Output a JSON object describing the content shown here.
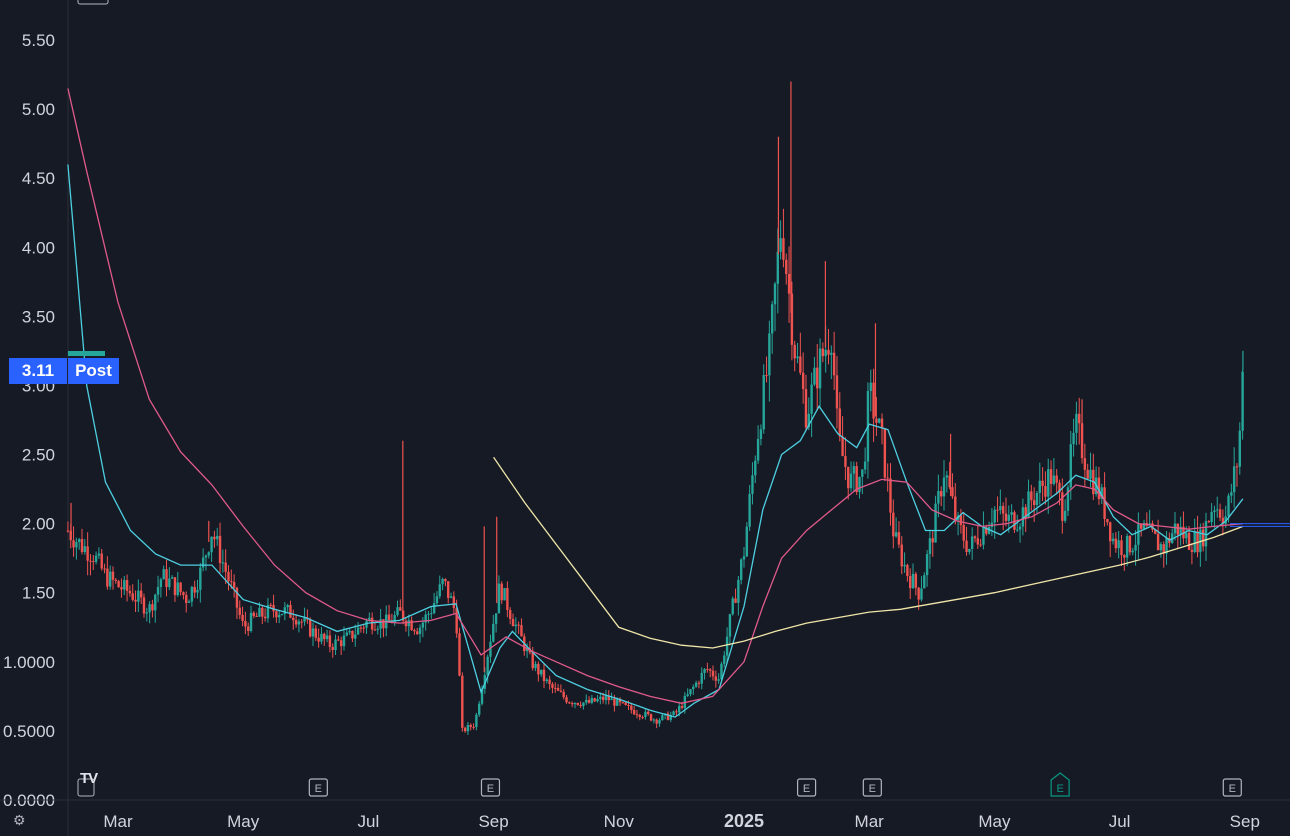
{
  "chart_data": {
    "type": "candlestick",
    "y_ticks": [
      "5.50",
      "5.00",
      "4.50",
      "4.00",
      "3.50",
      "3.00",
      "2.50",
      "2.00",
      "1.50",
      "1.0000",
      "0.5000",
      "0.0000"
    ],
    "y_tick_values": [
      5.5,
      5.0,
      4.5,
      4.0,
      3.5,
      3.0,
      2.5,
      2.0,
      1.5,
      1.0,
      0.5,
      0.0
    ],
    "x_ticks": [
      {
        "label": "Mar",
        "month": 2,
        "bold": false
      },
      {
        "label": "May",
        "month": 4,
        "bold": false
      },
      {
        "label": "Jul",
        "month": 6,
        "bold": false
      },
      {
        "label": "Sep",
        "month": 8,
        "bold": false
      },
      {
        "label": "Nov",
        "month": 10,
        "bold": false
      },
      {
        "label": "2025",
        "month": 12,
        "bold": true
      },
      {
        "label": "Mar",
        "month": 14,
        "bold": false
      },
      {
        "label": "May",
        "month": 16,
        "bold": false
      },
      {
        "label": "Jul",
        "month": 18,
        "bold": false
      },
      {
        "label": "Sep",
        "month": 20,
        "bold": false
      }
    ],
    "ylim": [
      0.0,
      5.8
    ],
    "xlim_months": [
      1.2,
      21.2
    ],
    "current_price": "3.11",
    "session_label": "Post",
    "earnings_markers": [
      {
        "label": "E",
        "month": 5.2,
        "color": "#b2b5be"
      },
      {
        "label": "E",
        "month": 7.95,
        "color": "#b2b5be"
      },
      {
        "label": "E",
        "month": 13.0,
        "color": "#b2b5be"
      },
      {
        "label": "E",
        "month": 14.05,
        "color": "#b2b5be"
      },
      {
        "label": "E",
        "month": 17.05,
        "color": "#089981"
      },
      {
        "label": "E",
        "month": 19.8,
        "color": "#b2b5be"
      }
    ],
    "price_path": [
      [
        1.2,
        1.95
      ],
      [
        1.4,
        1.85
      ],
      [
        1.6,
        1.78
      ],
      [
        1.8,
        1.62
      ],
      [
        2.0,
        1.55
      ],
      [
        2.2,
        1.5
      ],
      [
        2.5,
        1.38
      ],
      [
        2.7,
        1.62
      ],
      [
        2.9,
        1.55
      ],
      [
        3.1,
        1.46
      ],
      [
        3.3,
        1.62
      ],
      [
        3.5,
        1.95
      ],
      [
        3.6,
        1.82
      ],
      [
        3.8,
        1.55
      ],
      [
        4.0,
        1.25
      ],
      [
        4.2,
        1.32
      ],
      [
        4.5,
        1.38
      ],
      [
        4.8,
        1.35
      ],
      [
        5.1,
        1.22
      ],
      [
        5.4,
        1.12
      ],
      [
        5.7,
        1.18
      ],
      [
        6.0,
        1.3
      ],
      [
        6.3,
        1.28
      ],
      [
        6.5,
        1.35
      ],
      [
        6.8,
        1.24
      ],
      [
        7.0,
        1.38
      ],
      [
        7.2,
        1.58
      ],
      [
        7.4,
        1.35
      ],
      [
        7.5,
        0.5
      ],
      [
        7.7,
        0.55
      ],
      [
        7.9,
        1.05
      ],
      [
        8.1,
        1.55
      ],
      [
        8.3,
        1.32
      ],
      [
        8.6,
        1.0
      ],
      [
        8.9,
        0.82
      ],
      [
        9.2,
        0.72
      ],
      [
        9.5,
        0.7
      ],
      [
        9.8,
        0.74
      ],
      [
        10.1,
        0.67
      ],
      [
        10.4,
        0.62
      ],
      [
        10.6,
        0.58
      ],
      [
        10.9,
        0.62
      ],
      [
        11.2,
        0.82
      ],
      [
        11.4,
        0.95
      ],
      [
        11.6,
        0.88
      ],
      [
        11.8,
        1.35
      ],
      [
        12.0,
        1.8
      ],
      [
        12.2,
        2.6
      ],
      [
        12.4,
        3.2
      ],
      [
        12.6,
        4.2
      ],
      [
        12.8,
        3.3
      ],
      [
        13.0,
        2.8
      ],
      [
        13.2,
        3.15
      ],
      [
        13.4,
        3.4
      ],
      [
        13.5,
        2.6
      ],
      [
        13.7,
        2.3
      ],
      [
        13.9,
        2.35
      ],
      [
        14.0,
        2.95
      ],
      [
        14.2,
        2.6
      ],
      [
        14.4,
        1.9
      ],
      [
        14.6,
        1.65
      ],
      [
        14.8,
        1.5
      ],
      [
        15.0,
        1.9
      ],
      [
        15.2,
        2.4
      ],
      [
        15.4,
        2.0
      ],
      [
        15.6,
        1.82
      ],
      [
        15.8,
        1.95
      ],
      [
        16.0,
        2.1
      ],
      [
        16.2,
        2.02
      ],
      [
        16.4,
        2.05
      ],
      [
        16.6,
        2.18
      ],
      [
        16.9,
        2.35
      ],
      [
        17.1,
        2.1
      ],
      [
        17.3,
        2.7
      ],
      [
        17.5,
        2.4
      ],
      [
        17.7,
        2.2
      ],
      [
        17.9,
        1.88
      ],
      [
        18.1,
        1.82
      ],
      [
        18.4,
        1.95
      ],
      [
        18.7,
        1.82
      ],
      [
        18.9,
        1.98
      ],
      [
        19.1,
        1.88
      ],
      [
        19.3,
        1.88
      ],
      [
        19.5,
        2.15
      ],
      [
        19.7,
        2.05
      ],
      [
        19.9,
        2.5
      ],
      [
        19.97,
        3.11
      ]
    ],
    "spikes": [
      {
        "month": 1.25,
        "high": 2.15
      },
      {
        "month": 3.45,
        "high": 2.02
      },
      {
        "month": 6.55,
        "high": 2.6
      },
      {
        "month": 7.85,
        "high": 1.98
      },
      {
        "month": 8.05,
        "high": 2.05
      },
      {
        "month": 12.55,
        "high": 4.8
      },
      {
        "month": 12.75,
        "high": 5.2
      },
      {
        "month": 13.3,
        "high": 3.9
      },
      {
        "month": 14.1,
        "high": 3.45
      },
      {
        "month": 15.3,
        "high": 2.65
      },
      {
        "month": 17.4,
        "high": 2.9
      },
      {
        "month": 19.97,
        "high": 3.25
      }
    ],
    "ma_series": [
      {
        "color": "#4dd0e1",
        "points": [
          [
            1.2,
            4.6
          ],
          [
            1.5,
            3.0
          ],
          [
            1.8,
            2.3
          ],
          [
            2.2,
            1.95
          ],
          [
            2.6,
            1.78
          ],
          [
            3.0,
            1.7
          ],
          [
            3.5,
            1.7
          ],
          [
            4.0,
            1.45
          ],
          [
            4.5,
            1.38
          ],
          [
            5.0,
            1.32
          ],
          [
            5.5,
            1.22
          ],
          [
            6.0,
            1.28
          ],
          [
            6.5,
            1.3
          ],
          [
            7.0,
            1.4
          ],
          [
            7.4,
            1.42
          ],
          [
            7.8,
            0.78
          ],
          [
            8.1,
            1.1
          ],
          [
            8.3,
            1.22
          ],
          [
            8.6,
            1.08
          ],
          [
            9.0,
            0.9
          ],
          [
            9.5,
            0.8
          ],
          [
            10.0,
            0.73
          ],
          [
            10.5,
            0.65
          ],
          [
            10.9,
            0.6
          ],
          [
            11.2,
            0.7
          ],
          [
            11.6,
            0.8
          ],
          [
            12.0,
            1.4
          ],
          [
            12.3,
            2.1
          ],
          [
            12.6,
            2.5
          ],
          [
            12.9,
            2.6
          ],
          [
            13.2,
            2.85
          ],
          [
            13.5,
            2.65
          ],
          [
            13.8,
            2.55
          ],
          [
            14.0,
            2.72
          ],
          [
            14.3,
            2.68
          ],
          [
            14.6,
            2.3
          ],
          [
            14.9,
            1.95
          ],
          [
            15.2,
            1.95
          ],
          [
            15.5,
            2.08
          ],
          [
            15.8,
            1.98
          ],
          [
            16.1,
            1.92
          ],
          [
            16.4,
            2.02
          ],
          [
            16.7,
            2.12
          ],
          [
            17.0,
            2.22
          ],
          [
            17.3,
            2.35
          ],
          [
            17.6,
            2.3
          ],
          [
            17.9,
            2.05
          ],
          [
            18.2,
            1.92
          ],
          [
            18.5,
            1.98
          ],
          [
            18.8,
            1.88
          ],
          [
            19.1,
            1.95
          ],
          [
            19.4,
            1.92
          ],
          [
            19.7,
            2.02
          ],
          [
            19.97,
            2.18
          ]
        ]
      },
      {
        "color": "#e05a8a",
        "points": [
          [
            1.2,
            5.15
          ],
          [
            1.5,
            4.55
          ],
          [
            2.0,
            3.6
          ],
          [
            2.5,
            2.9
          ],
          [
            3.0,
            2.52
          ],
          [
            3.5,
            2.28
          ],
          [
            4.0,
            1.98
          ],
          [
            4.5,
            1.7
          ],
          [
            5.0,
            1.5
          ],
          [
            5.5,
            1.37
          ],
          [
            6.0,
            1.3
          ],
          [
            6.5,
            1.28
          ],
          [
            7.0,
            1.3
          ],
          [
            7.4,
            1.35
          ],
          [
            7.8,
            1.05
          ],
          [
            8.2,
            1.18
          ],
          [
            8.6,
            1.08
          ],
          [
            9.0,
            1.0
          ],
          [
            9.5,
            0.9
          ],
          [
            10.0,
            0.82
          ],
          [
            10.5,
            0.75
          ],
          [
            11.0,
            0.7
          ],
          [
            11.5,
            0.75
          ],
          [
            12.0,
            1.0
          ],
          [
            12.3,
            1.4
          ],
          [
            12.6,
            1.75
          ],
          [
            13.0,
            1.95
          ],
          [
            13.4,
            2.1
          ],
          [
            13.8,
            2.25
          ],
          [
            14.2,
            2.32
          ],
          [
            14.6,
            2.3
          ],
          [
            15.0,
            2.1
          ],
          [
            15.4,
            2.02
          ],
          [
            15.8,
            1.98
          ],
          [
            16.2,
            2.0
          ],
          [
            16.6,
            2.05
          ],
          [
            17.0,
            2.15
          ],
          [
            17.3,
            2.28
          ],
          [
            17.6,
            2.25
          ],
          [
            17.9,
            2.1
          ],
          [
            18.3,
            2.0
          ],
          [
            18.7,
            1.98
          ],
          [
            19.1,
            1.96
          ],
          [
            19.5,
            1.98
          ],
          [
            19.97,
            2.0
          ]
        ]
      },
      {
        "color": "#f0e6a8",
        "points": [
          [
            8.0,
            2.48
          ],
          [
            8.5,
            2.15
          ],
          [
            9.0,
            1.85
          ],
          [
            9.5,
            1.55
          ],
          [
            10.0,
            1.25
          ],
          [
            10.5,
            1.17
          ],
          [
            11.0,
            1.12
          ],
          [
            11.5,
            1.1
          ],
          [
            12.0,
            1.15
          ],
          [
            12.5,
            1.22
          ],
          [
            13.0,
            1.28
          ],
          [
            13.5,
            1.32
          ],
          [
            14.0,
            1.36
          ],
          [
            14.5,
            1.38
          ],
          [
            15.0,
            1.42
          ],
          [
            15.5,
            1.46
          ],
          [
            16.0,
            1.5
          ],
          [
            16.5,
            1.55
          ],
          [
            17.0,
            1.6
          ],
          [
            17.5,
            1.65
          ],
          [
            18.0,
            1.7
          ],
          [
            18.5,
            1.76
          ],
          [
            19.0,
            1.83
          ],
          [
            19.5,
            1.9
          ],
          [
            19.97,
            1.98
          ]
        ]
      }
    ],
    "colors": {
      "up": "#26a69a",
      "down": "#ef5350",
      "background": "#161a25",
      "grid": "#2a2e39",
      "text": "#d1d4dc"
    },
    "grid": false
  },
  "ui": {
    "logo_text": "TV",
    "settings_icon": "gear-icon"
  }
}
